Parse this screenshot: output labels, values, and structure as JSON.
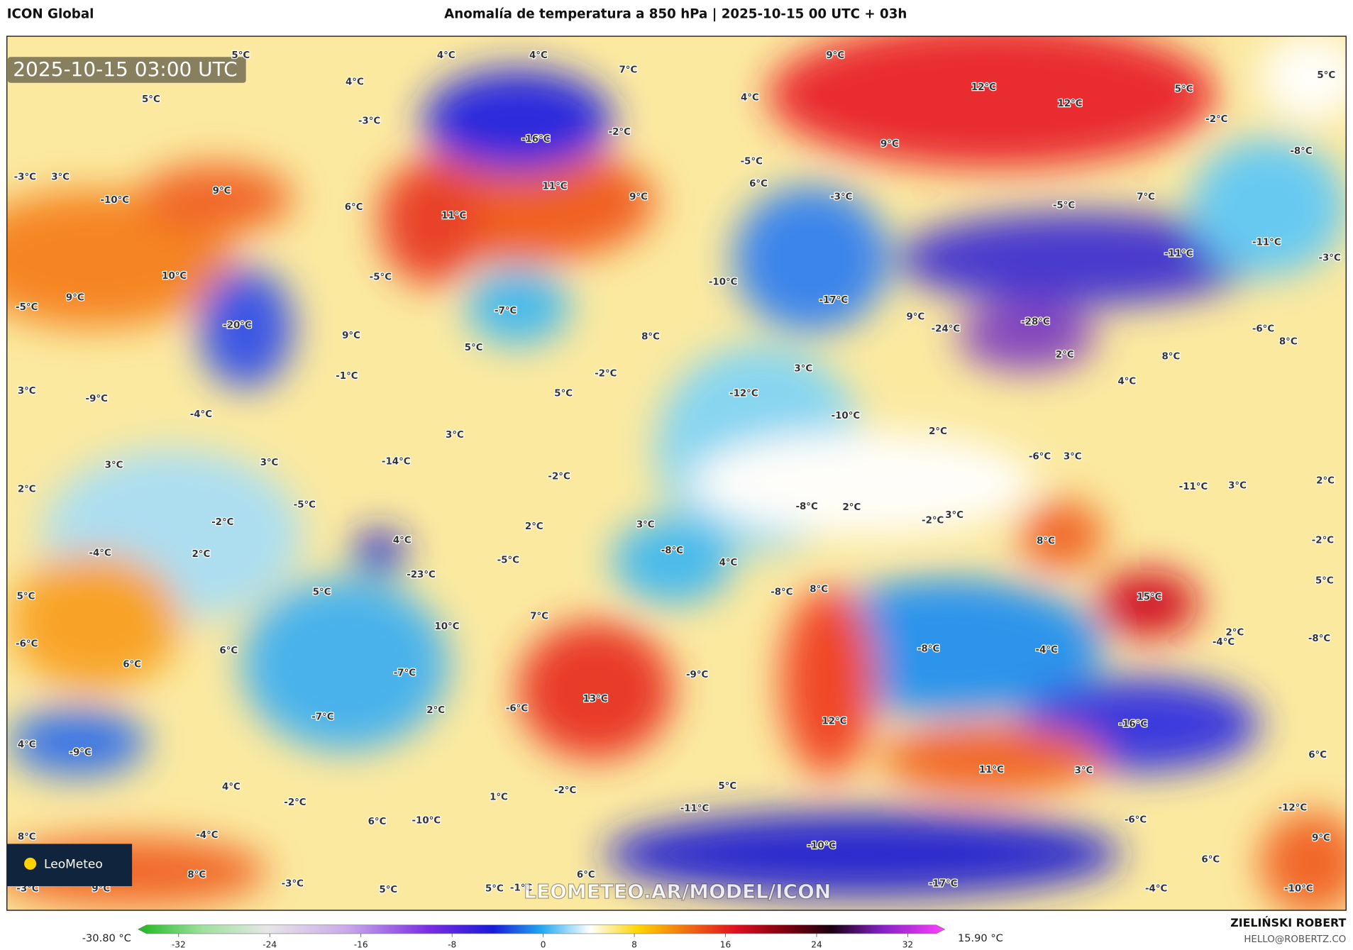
{
  "header": {
    "model": "ICON Global",
    "title": "Anomalía de temperatura a 850 hPa | 2025-10-15 00 UTC + 03h"
  },
  "timestamp": "2025-10-15 03:00 UTC",
  "labels": [
    "5°C",
    "4°C",
    "4°C",
    "7°C",
    "9°C",
    "5°C",
    "4°C",
    "5°C",
    "4°C",
    "12°C",
    "5°C",
    "12°C",
    "-3°C",
    "-2°C",
    "-16°C",
    "-2°C",
    "9°C",
    "-8°C",
    "-3°C",
    "3°C",
    "-5°C",
    "6°C",
    "9°C",
    "11°C",
    "9°C",
    "-10°C",
    "6°C",
    "-3°C",
    "-5°C",
    "7°C",
    "11°C",
    "-11°C",
    "-11°C",
    "-3°C",
    "10°C",
    "-5°C",
    "-10°C",
    "9°C",
    "-5°C",
    "-7°C",
    "-17°C",
    "9°C",
    "-24°C",
    "-20°C",
    "-28°C",
    "9°C",
    "8°C",
    "-6°C",
    "8°C",
    "5°C",
    "8°C",
    "2°C",
    "3°C",
    "-1°C",
    "-2°C",
    "4°C",
    "3°C",
    "-9°C",
    "5°C",
    "-12°C",
    "-4°C",
    "-10°C",
    "2°C",
    "3°C",
    "-6°C",
    "3°C",
    "3°C",
    "3°C",
    "-14°C",
    "-2°C",
    "2°C",
    "3°C",
    "-11°C",
    "2°C",
    "-5°C",
    "-8°C",
    "2°C",
    "-2°C",
    "3°C",
    "-2°C",
    "2°C",
    "3°C",
    "8°C",
    "-2°C",
    "-4°C",
    "4°C",
    "2°C",
    "-8°C",
    "-5°C",
    "4°C",
    "-23°C",
    "5°C",
    "5°C",
    "-8°C",
    "8°C",
    "15°C",
    "5°C",
    "7°C",
    "10°C",
    "2°C",
    "-4°C",
    "-8°C",
    "-6°C",
    "6°C",
    "-8°C",
    "-4°C",
    "6°C",
    "-7°C",
    "-9°C",
    "13°C",
    "2°C",
    "-6°C",
    "-7°C",
    "12°C",
    "-16°C",
    "4°C",
    "-9°C",
    "6°C",
    "11°C",
    "3°C",
    "4°C",
    "5°C",
    "1°C",
    "-2°C",
    "-2°C",
    "-11°C",
    "-12°C",
    "-10°C",
    "6°C",
    "-6°C",
    "-4°C",
    "8°C",
    "9°C",
    "-10°C",
    "6°C",
    "8°C",
    "6°C",
    "-3°C",
    "9°C",
    "-3°C",
    "5°C",
    "5°C",
    "-1°C",
    "-17°C",
    "-4°C",
    "-10°C"
  ],
  "colorbar": {
    "min_label": "-30.80 °C",
    "max_label": "15.90 °C",
    "ticks": [
      -32,
      -24,
      -16,
      -8,
      0,
      8,
      16,
      24,
      32
    ]
  },
  "watermark": "LEOMETEO.AR/MODEL/ICON",
  "logo": "LeoMeteo",
  "author": {
    "name": "ZIELIŃSKI ROBERT",
    "email": "HELLO@ROBERTZ.CO"
  }
}
